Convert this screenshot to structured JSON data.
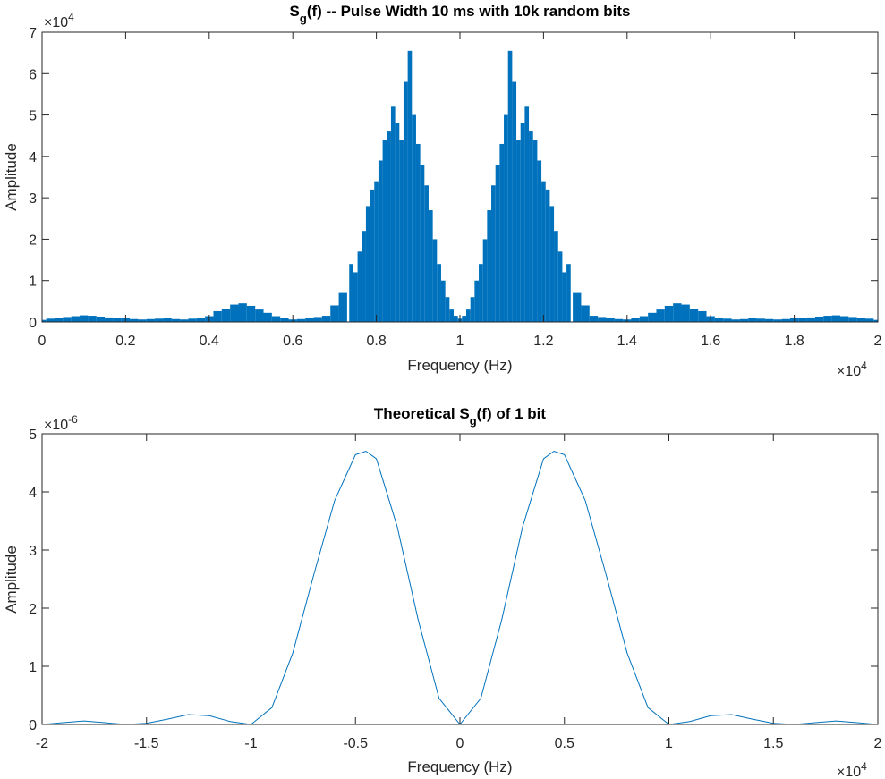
{
  "chart_data": [
    {
      "type": "bar",
      "title_main": "S",
      "title_sub": "g",
      "title_rest": "(f) -- Pulse Width 10 ms with 10k random bits",
      "xlabel": "Frequency (Hz)",
      "ylabel": "Amplitude",
      "x_exponent_base": "×10",
      "x_exponent_power": "4",
      "y_exponent_base": "×10",
      "y_exponent_power": "4",
      "xlim": [
        0,
        20000
      ],
      "ylim": [
        0,
        70000
      ],
      "xticks": [
        "0",
        "0.2",
        "0.4",
        "0.6",
        "0.8",
        "1",
        "1.2",
        "1.4",
        "1.6",
        "1.8",
        "2"
      ],
      "yticks": [
        "0",
        "1",
        "2",
        "3",
        "4",
        "5",
        "6",
        "7"
      ],
      "bar_color": "#0072BD",
      "x": [
        0,
        200,
        400,
        600,
        800,
        1000,
        1200,
        1400,
        1600,
        1800,
        2000,
        2200,
        2400,
        2600,
        2800,
        3000,
        3200,
        3400,
        3600,
        3800,
        4000,
        4200,
        4400,
        4600,
        4800,
        5000,
        5200,
        5400,
        5600,
        5800,
        6000,
        6200,
        6400,
        6600,
        6800,
        7000,
        7200,
        7400,
        7500,
        7600,
        7700,
        7800,
        7900,
        8000,
        8100,
        8200,
        8300,
        8400,
        8500,
        8600,
        8700,
        8800,
        8900,
        9000,
        9100,
        9200,
        9300,
        9400,
        9500,
        9600,
        9700,
        9800,
        9900,
        10000,
        10100,
        10200,
        10300,
        10400,
        10500,
        10600,
        10700,
        10800,
        10900,
        11000,
        11100,
        11200,
        11300,
        11400,
        11500,
        11600,
        11700,
        11800,
        11900,
        12000,
        12100,
        12200,
        12300,
        12400,
        12500,
        12600,
        12800,
        13000,
        13200,
        13400,
        13600,
        13800,
        14000,
        14200,
        14400,
        14600,
        14800,
        15000,
        15200,
        15400,
        15600,
        15800,
        16000,
        16200,
        16400,
        16600,
        16800,
        17000,
        17200,
        17400,
        17600,
        17800,
        18000,
        18200,
        18400,
        18600,
        18800,
        19000,
        19200,
        19400,
        19600,
        19800,
        20000
      ],
      "values": [
        500,
        800,
        1000,
        1200,
        1400,
        1600,
        1500,
        1300,
        1100,
        1000,
        900,
        700,
        600,
        700,
        800,
        900,
        700,
        600,
        800,
        1000,
        1400,
        2600,
        3200,
        4200,
        4500,
        3900,
        3000,
        2200,
        1400,
        900,
        600,
        700,
        900,
        1200,
        1500,
        4000,
        7000,
        14000,
        12000,
        17000,
        22000,
        28000,
        32000,
        34000,
        39000,
        44000,
        46000,
        52000,
        48000,
        44000,
        58000,
        65500,
        50000,
        43000,
        38000,
        33000,
        27000,
        20000,
        14000,
        10000,
        6000,
        3000,
        1500,
        800,
        1500,
        3000,
        6000,
        10000,
        14000,
        20000,
        27000,
        33000,
        38000,
        43000,
        50000,
        65500,
        58000,
        44000,
        48000,
        52000,
        46000,
        44000,
        39000,
        34000,
        32000,
        28000,
        22000,
        17000,
        12000,
        14000,
        7000,
        4000,
        1500,
        1200,
        900,
        700,
        600,
        900,
        1400,
        2200,
        3000,
        3900,
        4500,
        4200,
        3200,
        2600,
        1400,
        1000,
        800,
        600,
        700,
        900,
        800,
        700,
        600,
        700,
        900,
        1000,
        1100,
        1300,
        1500,
        1600,
        1400,
        1200,
        1000,
        800,
        500
      ]
    },
    {
      "type": "line",
      "title_main": "Theoretical S",
      "title_sub": "g",
      "title_rest": "(f) of 1 bit",
      "xlabel": "Frequency (Hz)",
      "ylabel": "Amplitude",
      "x_exponent_base": "×10",
      "x_exponent_power": "4",
      "y_exponent_base": "×10",
      "y_exponent_power": "-6",
      "xlim": [
        -20000,
        20000
      ],
      "ylim": [
        0,
        5e-06
      ],
      "xticks": [
        "-2",
        "-1.5",
        "-1",
        "-0.5",
        "0",
        "0.5",
        "1",
        "1.5",
        "2"
      ],
      "yticks": [
        "0",
        "1",
        "2",
        "3",
        "4",
        "5"
      ],
      "line_color": "#0072BD",
      "x": [
        -20000,
        -19000,
        -18000,
        -17000,
        -16000,
        -15000,
        -14000,
        -13000,
        -12000,
        -11000,
        -10000,
        -9000,
        -8000,
        -7000,
        -6000,
        -5000,
        -4500,
        -4000,
        -3000,
        -2000,
        -1000,
        0,
        1000,
        2000,
        3000,
        4000,
        4500,
        5000,
        6000,
        7000,
        8000,
        9000,
        10000,
        11000,
        12000,
        13000,
        14000,
        15000,
        16000,
        17000,
        18000,
        19000,
        20000
      ],
      "values": [
        0,
        3e-08,
        6e-08,
        3e-08,
        0,
        2e-08,
        9e-08,
        1.7e-07,
        1.5e-07,
        5e-08,
        0,
        2.9e-07,
        1.23e-06,
        2.57e-06,
        3.85e-06,
        4.64e-06,
        4.7e-06,
        4.57e-06,
        3.4e-06,
        1.8e-06,
        4.5e-07,
        0,
        4.5e-07,
        1.8e-06,
        3.4e-06,
        4.57e-06,
        4.7e-06,
        4.64e-06,
        3.85e-06,
        2.57e-06,
        1.23e-06,
        2.9e-07,
        0,
        5e-08,
        1.5e-07,
        1.7e-07,
        9e-08,
        2e-08,
        0,
        3e-08,
        6e-08,
        3e-08,
        0
      ]
    }
  ]
}
